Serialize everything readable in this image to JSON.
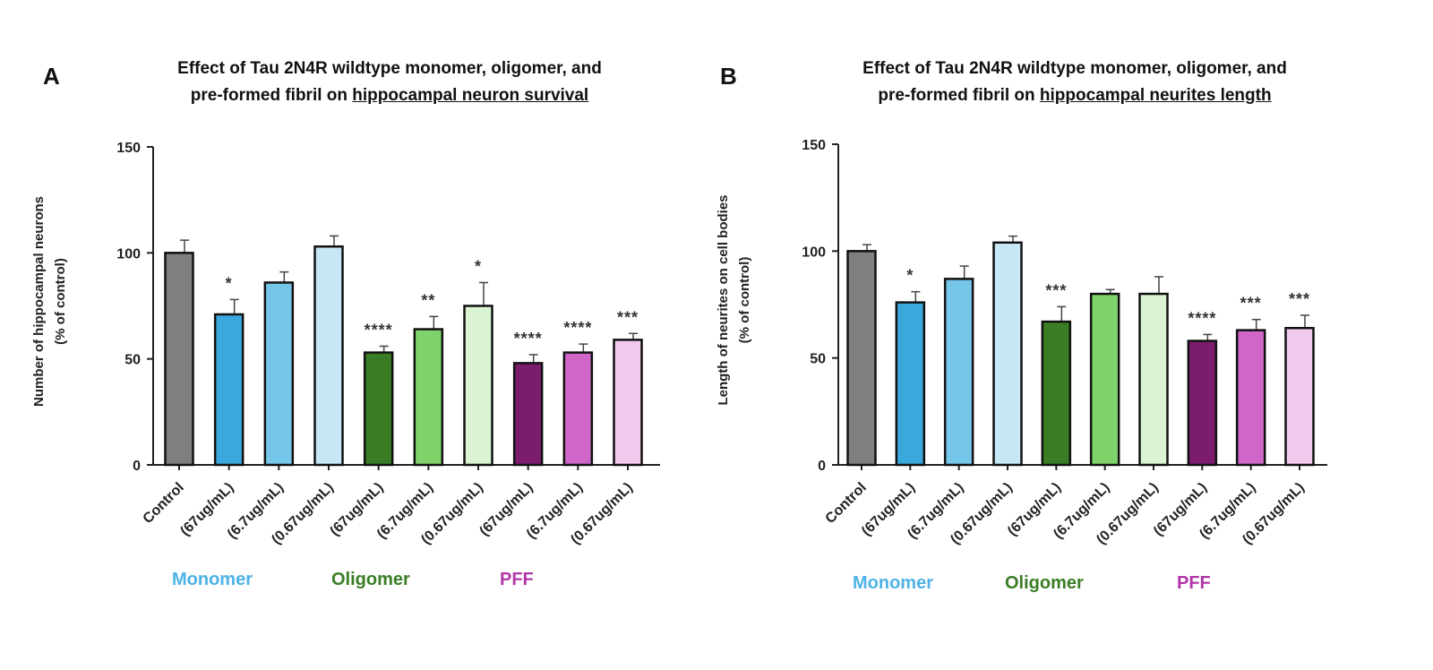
{
  "colors": {
    "control": "#7f7f7f",
    "monomer_1": "#3aa7dd",
    "monomer_2": "#76c6ea",
    "monomer_3": "#c7e7f7",
    "oligomer_1": "#3a7d25",
    "oligomer_2": "#7fd36a",
    "oligomer_3": "#daf4d1",
    "pff_1": "#7b1c6c",
    "pff_2": "#d067c8",
    "pff_3": "#f1cbee",
    "monomer_label": "#4db3e6",
    "oligomer_label": "#3a7d25",
    "pff_label": "#b136a8"
  },
  "panels": [
    {
      "letter": "A",
      "title_line1": "Effect of Tau 2N4R wildtype monomer, oligomer, and",
      "title_line2_prefix": "pre-formed fibril on ",
      "title_line2_underlined": "hippocampal neuron survival",
      "groups": {
        "monomer": "Monomer",
        "oligomer": "Oligomer",
        "pff": "PFF"
      }
    },
    {
      "letter": "B",
      "title_line1": "Effect of Tau 2N4R wildtype monomer, oligomer, and",
      "title_line2_prefix": "pre-formed fibril on ",
      "title_line2_underlined": "hippocampal neurites length",
      "groups": {
        "monomer": "Monomer",
        "oligomer": "Oligomer",
        "pff": "PFF"
      }
    }
  ],
  "chart_data": [
    {
      "type": "bar",
      "title": "Effect of Tau 2N4R wildtype monomer, oligomer, and pre-formed fibril on hippocampal neuron survival",
      "ylabel": "Number of hippocampal neurons (% of control)",
      "ylabel_lines": [
        "Number of hippocampal neurons",
        "(% of control)"
      ],
      "ylim": [
        0,
        150
      ],
      "yticks": [
        0,
        50,
        100,
        150
      ],
      "categories": [
        "Control",
        "(67ug/mL)",
        "(6.7ug/mL)",
        "(0.67ug/mL)",
        "(67ug/mL)",
        "(6.7ug/mL)",
        "(0.67ug/mL)",
        "(67ug/mL)",
        "(6.7ug/mL)",
        "(0.67ug/mL)"
      ],
      "values": [
        100,
        71,
        86,
        103,
        53,
        64,
        75,
        48,
        53,
        59
      ],
      "errors": [
        6,
        7,
        5,
        5,
        3,
        6,
        11,
        4,
        4,
        3
      ],
      "significance": [
        "",
        "*",
        "",
        "",
        "****",
        "**",
        "*",
        "****",
        "****",
        "***"
      ],
      "bar_color_keys": [
        "control",
        "monomer_1",
        "monomer_2",
        "monomer_3",
        "oligomer_1",
        "oligomer_2",
        "oligomer_3",
        "pff_1",
        "pff_2",
        "pff_3"
      ]
    },
    {
      "type": "bar",
      "title": "Effect of Tau 2N4R wildtype monomer, oligomer, and pre-formed fibril on hippocampal neurites length",
      "ylabel": "Length of neurites on cell bodies (% of control)",
      "ylabel_lines": [
        "Length of neurites on cell bodies",
        "(% of control)"
      ],
      "ylim": [
        0,
        150
      ],
      "yticks": [
        0,
        50,
        100,
        150
      ],
      "categories": [
        "Control",
        "(67ug/mL)",
        "(6.7ug/mL)",
        "(0.67ug/mL)",
        "(67ug/mL)",
        "(6.7ug/mL)",
        "(0.67ug/mL)",
        "(67ug/mL)",
        "(6.7ug/mL)",
        "(0.67ug/mL)"
      ],
      "values": [
        100,
        76,
        87,
        104,
        67,
        80,
        80,
        58,
        63,
        64
      ],
      "errors": [
        3,
        5,
        6,
        3,
        7,
        2,
        8,
        3,
        5,
        6
      ],
      "significance": [
        "",
        "*",
        "",
        "",
        "***",
        "",
        "",
        "****",
        "***",
        "***"
      ],
      "bar_color_keys": [
        "control",
        "monomer_1",
        "monomer_2",
        "monomer_3",
        "oligomer_1",
        "oligomer_2",
        "oligomer_3",
        "pff_1",
        "pff_2",
        "pff_3"
      ]
    }
  ]
}
